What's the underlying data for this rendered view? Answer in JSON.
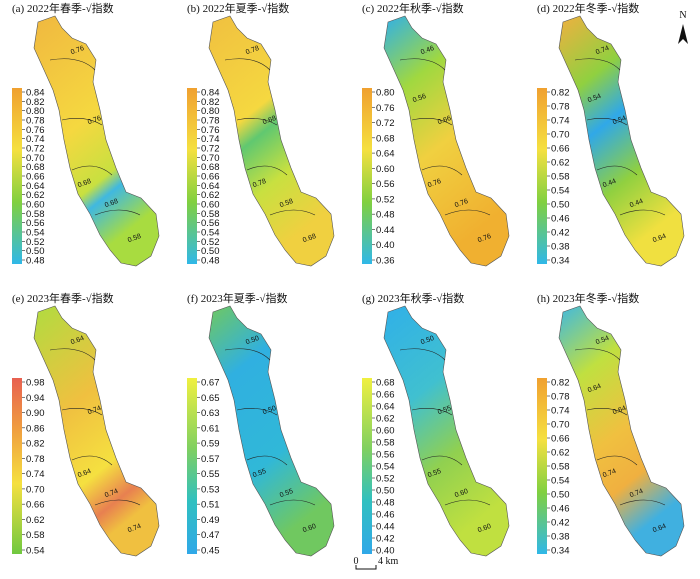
{
  "panels": [
    {
      "title": "(a) 2022年春季-√指数",
      "colorbar": [
        "0.84",
        "0.82",
        "0.80",
        "0.78",
        "0.76",
        "0.74",
        "0.72",
        "0.70",
        "0.68",
        "0.66",
        "0.64",
        "0.62",
        "0.60",
        "0.58",
        "0.56",
        "0.54",
        "0.52",
        "0.50",
        "0.48"
      ],
      "contour_labels": [
        "0.76",
        "0.76",
        "0.68",
        "0.68",
        "0.58"
      ]
    },
    {
      "title": "(b) 2022年夏季-√指数",
      "colorbar": [
        "0.84",
        "0.82",
        "0.80",
        "0.78",
        "0.76",
        "0.74",
        "0.72",
        "0.70",
        "0.68",
        "0.66",
        "0.64",
        "0.62",
        "0.60",
        "0.58",
        "0.56",
        "0.54",
        "0.52",
        "0.50",
        "0.48"
      ],
      "contour_labels": [
        "0.78",
        "0.68",
        "0.78",
        "0.58",
        "0.68"
      ]
    },
    {
      "title": "(c) 2022年秋季-√指数",
      "colorbar": [
        "0.80",
        "0.76",
        "0.72",
        "0.68",
        "0.64",
        "0.60",
        "0.56",
        "0.52",
        "0.48",
        "0.44",
        "0.40",
        "0.36"
      ],
      "contour_labels": [
        "0.46",
        "0.66",
        "0.76",
        "0.76",
        "0.76",
        "0.56"
      ]
    },
    {
      "title": "(d) 2022年冬季-√指数",
      "colorbar": [
        "0.82",
        "0.78",
        "0.74",
        "0.70",
        "0.66",
        "0.62",
        "0.58",
        "0.54",
        "0.50",
        "0.46",
        "0.42",
        "0.38",
        "0.34"
      ],
      "contour_labels": [
        "0.74",
        "0.54",
        "0.44",
        "0.44",
        "0.64",
        "0.54"
      ]
    },
    {
      "title": "(e) 2023年春季-√指数",
      "colorbar": [
        "0.98",
        "0.94",
        "0.90",
        "0.86",
        "0.82",
        "0.78",
        "0.74",
        "0.70",
        "0.66",
        "0.62",
        "0.58",
        "0.54"
      ],
      "contour_labels": [
        "0.64",
        "0.74",
        "0.64",
        "0.74",
        "0.74"
      ]
    },
    {
      "title": "(f) 2023年夏季-√指数",
      "colorbar": [
        "0.67",
        "0.65",
        "0.63",
        "0.61",
        "0.59",
        "0.57",
        "0.55",
        "0.53",
        "0.51",
        "0.49",
        "0.47",
        "0.45"
      ],
      "contour_labels": [
        "0.50",
        "0.50",
        "0.55",
        "0.55",
        "0.60"
      ]
    },
    {
      "title": "(g) 2023年秋季-√指数",
      "colorbar": [
        "0.68",
        "0.66",
        "0.64",
        "0.62",
        "0.60",
        "0.58",
        "0.56",
        "0.54",
        "0.52",
        "0.50",
        "0.48",
        "0.46",
        "0.44",
        "0.42",
        "0.40"
      ],
      "contour_labels": [
        "0.50",
        "0.55",
        "0.55",
        "0.60",
        "0.60"
      ]
    },
    {
      "title": "(h) 2023年冬季-√指数",
      "colorbar": [
        "0.82",
        "0.78",
        "0.74",
        "0.70",
        "0.66",
        "0.62",
        "0.58",
        "0.54",
        "0.50",
        "0.46",
        "0.42",
        "0.38",
        "0.34"
      ],
      "contour_labels": [
        "0.54",
        "0.64",
        "0.74",
        "0.74",
        "0.64",
        "0.64"
      ]
    }
  ],
  "north": "N",
  "scale": {
    "zero": "0",
    "distance": "4 km"
  }
}
